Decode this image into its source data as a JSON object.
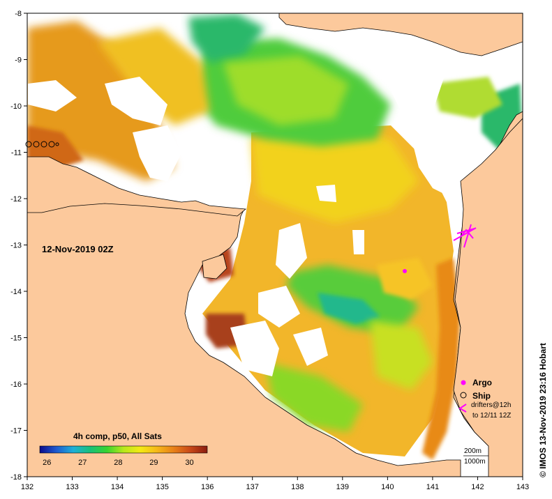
{
  "map": {
    "timestamp": "12-Nov-2019 02Z",
    "credit": "© IMOS 13-Nov-2019 23:16 Hobart",
    "lon_ticks": [
      "132",
      "133",
      "134",
      "135",
      "136",
      "137",
      "138",
      "139",
      "140",
      "141",
      "142",
      "143"
    ],
    "lat_ticks": [
      "-8",
      "-9",
      "-10",
      "-11",
      "-12",
      "-13",
      "-14",
      "-15",
      "-16",
      "-17",
      "-18"
    ],
    "lon_range": [
      132,
      143
    ],
    "lat_range": [
      -18,
      -8
    ],
    "colorbar": {
      "title": "4h comp, p50, All Sats",
      "range": [
        25.8,
        30.5
      ],
      "ticks": [
        "26",
        "27",
        "28",
        "29",
        "30"
      ],
      "colors": [
        "#0b0b8c",
        "#1e5bd0",
        "#1fb0d8",
        "#18c07a",
        "#38d330",
        "#b8e81c",
        "#f4ea14",
        "#f6b818",
        "#e88018",
        "#c84818",
        "#8a1c10"
      ]
    },
    "legend": {
      "argo": "Argo",
      "ship": "Ship",
      "drifters_line1": "drifters@12h",
      "drifters_line2": "to 12/11 12Z"
    },
    "scale": {
      "depth1": "200m",
      "depth2": "1000m"
    },
    "colors": {
      "land": "#fcc99c",
      "nodata": "#ffffff",
      "argo": "#ff00ff",
      "drifter": "#ff00ff"
    }
  }
}
